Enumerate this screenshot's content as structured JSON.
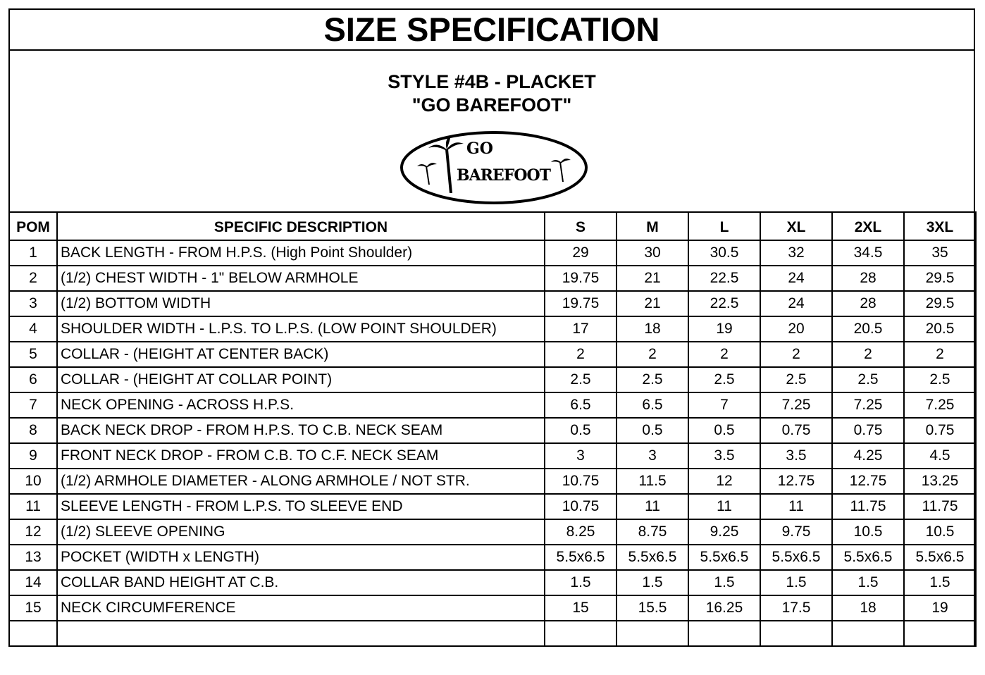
{
  "title": "SIZE SPECIFICATION",
  "style_line": "STYLE #4B - PLACKET",
  "style_name": "\"GO BAREFOOT\"",
  "logo": {
    "text_top": "GO",
    "text_main": "BAREFOOT"
  },
  "table": {
    "headers": [
      "POM",
      "SPECIFIC DESCRIPTION",
      "S",
      "M",
      "L",
      "XL",
      "2XL",
      "3XL"
    ],
    "rows": [
      [
        "1",
        "BACK LENGTH - FROM H.P.S. (High Point Shoulder)",
        "29",
        "30",
        "30.5",
        "32",
        "34.5",
        "35"
      ],
      [
        "2",
        "(1/2) CHEST WIDTH - 1\" BELOW ARMHOLE",
        "19.75",
        "21",
        "22.5",
        "24",
        "28",
        "29.5"
      ],
      [
        "3",
        "(1/2) BOTTOM WIDTH",
        "19.75",
        "21",
        "22.5",
        "24",
        "28",
        "29.5"
      ],
      [
        "4",
        "SHOULDER WIDTH - L.P.S. TO L.P.S. (LOW POINT SHOULDER)",
        "17",
        "18",
        "19",
        "20",
        "20.5",
        "20.5"
      ],
      [
        "5",
        "COLLAR - (HEIGHT AT CENTER BACK)",
        "2",
        "2",
        "2",
        "2",
        "2",
        "2"
      ],
      [
        "6",
        "COLLAR - (HEIGHT AT COLLAR POINT)",
        "2.5",
        "2.5",
        "2.5",
        "2.5",
        "2.5",
        "2.5"
      ],
      [
        "7",
        "NECK OPENING - ACROSS H.P.S.",
        "6.5",
        "6.5",
        "7",
        "7.25",
        "7.25",
        "7.25"
      ],
      [
        "8",
        "BACK NECK DROP - FROM H.P.S. TO C.B. NECK SEAM",
        "0.5",
        "0.5",
        "0.5",
        "0.75",
        "0.75",
        "0.75"
      ],
      [
        "9",
        "FRONT NECK DROP - FROM C.B. TO C.F. NECK SEAM",
        "3",
        "3",
        "3.5",
        "3.5",
        "4.25",
        "4.5"
      ],
      [
        "10",
        "(1/2) ARMHOLE DIAMETER - ALONG ARMHOLE / NOT STR.",
        "10.75",
        "11.5",
        "12",
        "12.75",
        "12.75",
        "13.25"
      ],
      [
        "11",
        "SLEEVE LENGTH - FROM L.P.S. TO SLEEVE END",
        "10.75",
        "11",
        "11",
        "11",
        "11.75",
        "11.75"
      ],
      [
        "12",
        "(1/2) SLEEVE OPENING",
        "8.25",
        "8.75",
        "9.25",
        "9.75",
        "10.5",
        "10.5"
      ],
      [
        "13",
        "POCKET (WIDTH x LENGTH)",
        "5.5x6.5",
        "5.5x6.5",
        "5.5x6.5",
        "5.5x6.5",
        "5.5x6.5",
        "5.5x6.5"
      ],
      [
        "14",
        "COLLAR BAND HEIGHT AT C.B.",
        "1.5",
        "1.5",
        "1.5",
        "1.5",
        "1.5",
        "1.5"
      ],
      [
        "15",
        "NECK CIRCUMFERENCE",
        "15",
        "15.5",
        "16.25",
        "17.5",
        "18",
        "19"
      ],
      [
        "",
        "",
        "",
        "",
        "",
        "",
        "",
        ""
      ]
    ]
  }
}
